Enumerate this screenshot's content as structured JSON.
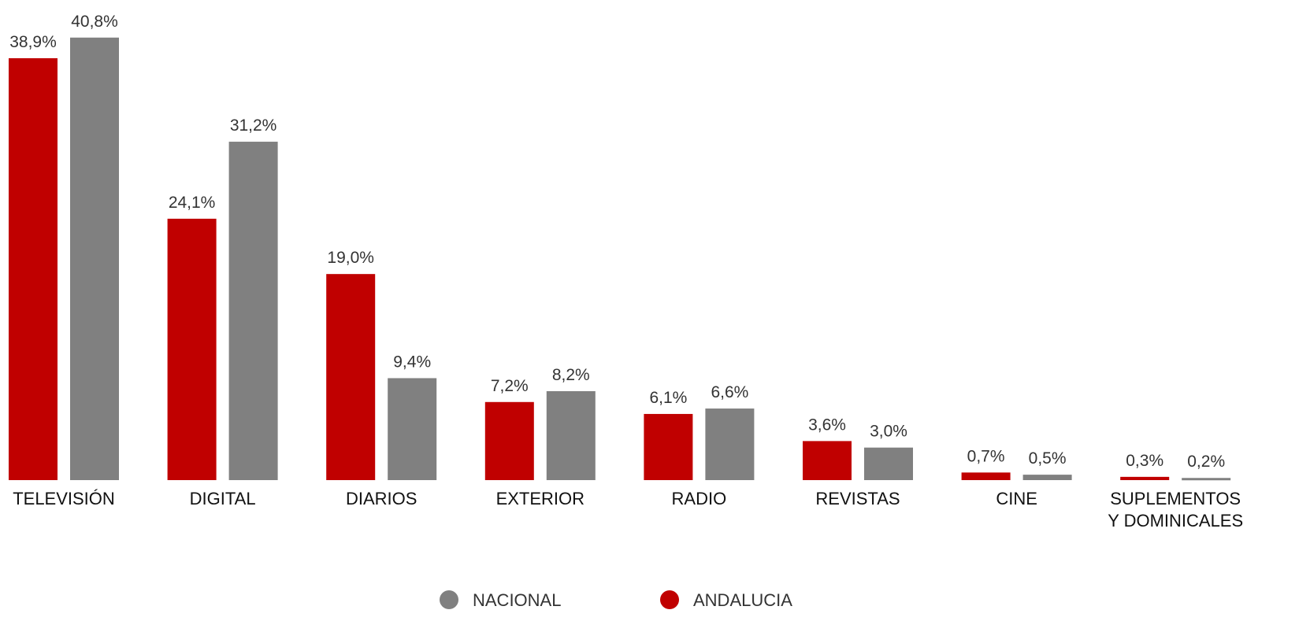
{
  "chart_data": {
    "type": "bar",
    "categories": [
      "TELEVISIÓN",
      "DIGITAL",
      "DIARIOS",
      "EXTERIOR",
      "RADIO",
      "REVISTAS",
      "CINE",
      "SUPLEMENTOS\nY DOMINICALES"
    ],
    "series": [
      {
        "name": "NACIONAL",
        "color": "#808080",
        "values": [
          40.8,
          31.2,
          9.4,
          8.2,
          6.6,
          3.0,
          0.5,
          0.2
        ],
        "value_labels": [
          "40,8%",
          "31,2%",
          "9,4%",
          "8,2%",
          "6,6%",
          "3,0%",
          "0,5%",
          "0,2%"
        ]
      },
      {
        "name": "ANDALUCIA",
        "color": "#c00000",
        "values": [
          38.9,
          24.1,
          19.0,
          7.2,
          6.1,
          3.6,
          0.7,
          0.3
        ],
        "value_labels": [
          "38,9%",
          "24,1%",
          "19,0%",
          "7,2%",
          "6,1%",
          "3,6%",
          "0,7%",
          "0,3%"
        ]
      }
    ],
    "ylim": [
      0,
      41
    ],
    "legend": "bottom"
  }
}
